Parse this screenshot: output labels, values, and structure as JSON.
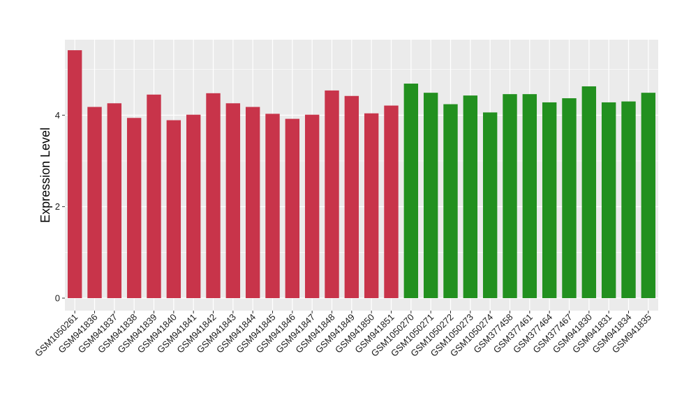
{
  "chart_data": {
    "type": "bar",
    "title": "",
    "xlabel": "",
    "ylabel": "Expression Level",
    "ylim": [
      0,
      5.65
    ],
    "yticks": [
      0,
      2,
      4
    ],
    "grid": true,
    "colors": {
      "group1": "#c8344a",
      "group2": "#22901f",
      "panel": "#ebebeb",
      "gridline": "#ffffff"
    },
    "categories": [
      "GSM1050261",
      "GSM941836",
      "GSM941837",
      "GSM941838",
      "GSM941839",
      "GSM941840",
      "GSM941841",
      "GSM941842",
      "GSM941843",
      "GSM941844",
      "GSM941845",
      "GSM941846",
      "GSM941847",
      "GSM941848",
      "GSM941849",
      "GSM941850",
      "GSM941851",
      "GSM1050270",
      "GSM1050271",
      "GSM1050272",
      "GSM1050273",
      "GSM1050274",
      "GSM377458",
      "GSM377461",
      "GSM377464",
      "GSM377467",
      "GSM941830",
      "GSM941831",
      "GSM941834",
      "GSM941835"
    ],
    "values": [
      5.42,
      4.18,
      4.26,
      3.94,
      4.45,
      3.89,
      4.01,
      4.48,
      4.26,
      4.18,
      4.03,
      3.92,
      4.01,
      4.54,
      4.42,
      4.04,
      4.21,
      4.69,
      4.49,
      4.24,
      4.43,
      4.06,
      4.46,
      4.46,
      4.28,
      4.37,
      4.63,
      4.28,
      4.3,
      4.49
    ],
    "bar_groups": [
      "group1",
      "group1",
      "group1",
      "group1",
      "group1",
      "group1",
      "group1",
      "group1",
      "group1",
      "group1",
      "group1",
      "group1",
      "group1",
      "group1",
      "group1",
      "group1",
      "group1",
      "group2",
      "group2",
      "group2",
      "group2",
      "group2",
      "group2",
      "group2",
      "group2",
      "group2",
      "group2",
      "group2",
      "group2",
      "group2"
    ]
  }
}
